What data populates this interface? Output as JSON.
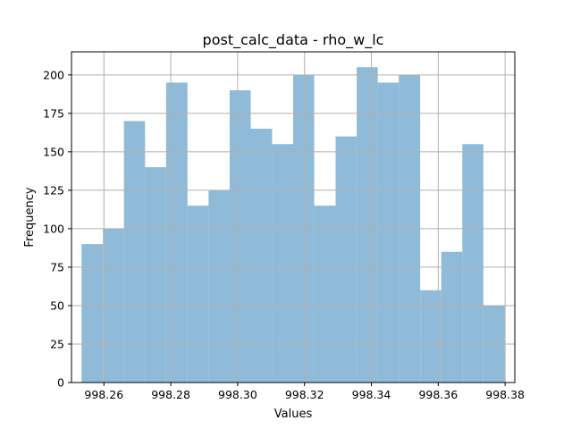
{
  "chart_data": {
    "type": "bar",
    "title": "post_calc_data - rho_w_lc",
    "xlabel": "Values",
    "ylabel": "Frequency",
    "xlim": [
      998.2503,
      998.3829
    ],
    "ylim": [
      0,
      215
    ],
    "grid": true,
    "bin_edges": [
      998.2533,
      998.2597,
      998.266,
      998.2723,
      998.2786,
      998.285,
      998.2913,
      998.2976,
      998.3039,
      998.3103,
      998.3166,
      998.3229,
      998.3293,
      998.3356,
      998.3419,
      998.3482,
      998.3546,
      998.3609,
      998.3672,
      998.3735,
      998.3799
    ],
    "values": [
      90,
      100,
      170,
      140,
      195,
      115,
      125,
      190,
      165,
      155,
      200,
      115,
      160,
      205,
      195,
      200,
      60,
      85,
      155,
      50
    ],
    "bar_color": "#8fbbd9",
    "x_ticks": [
      {
        "value": 998.26,
        "label": "998.26"
      },
      {
        "value": 998.28,
        "label": "998.28"
      },
      {
        "value": 998.3,
        "label": "998.30"
      },
      {
        "value": 998.32,
        "label": "998.32"
      },
      {
        "value": 998.34,
        "label": "998.34"
      },
      {
        "value": 998.36,
        "label": "998.36"
      },
      {
        "value": 998.38,
        "label": "998.38"
      }
    ],
    "y_ticks": [
      {
        "value": 0,
        "label": "0"
      },
      {
        "value": 25,
        "label": "25"
      },
      {
        "value": 50,
        "label": "50"
      },
      {
        "value": 75,
        "label": "75"
      },
      {
        "value": 100,
        "label": "100"
      },
      {
        "value": 125,
        "label": "125"
      },
      {
        "value": 150,
        "label": "150"
      },
      {
        "value": 175,
        "label": "175"
      },
      {
        "value": 200,
        "label": "200"
      }
    ]
  }
}
